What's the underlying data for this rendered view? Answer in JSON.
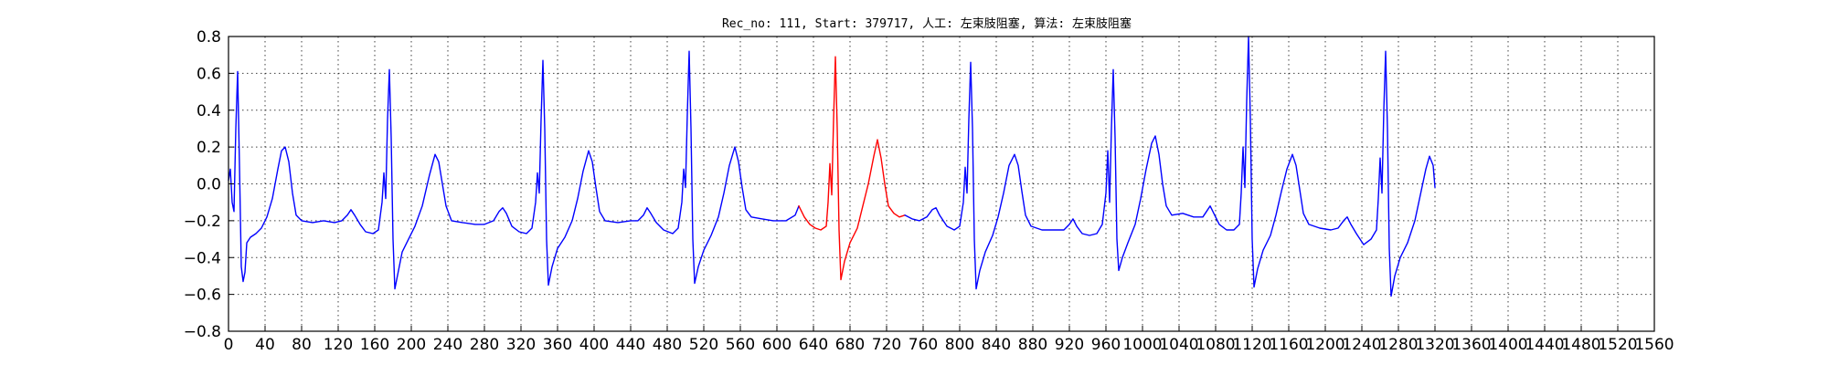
{
  "chart_data": {
    "type": "line",
    "title": "Rec_no: 111, Start: 379717, 人工: 左束肢阻塞, 算法: 左束肢阻塞",
    "xlabel": "",
    "ylabel": "",
    "xlim": [
      0,
      1560
    ],
    "ylim": [
      -0.8,
      0.8
    ],
    "grid": true,
    "x_ticks": [
      0,
      40,
      80,
      120,
      160,
      200,
      240,
      280,
      320,
      360,
      400,
      440,
      480,
      520,
      560,
      600,
      640,
      680,
      720,
      760,
      800,
      840,
      880,
      920,
      960,
      1000,
      1040,
      1080,
      1120,
      1160,
      1200,
      1240,
      1280,
      1320,
      1360,
      1400,
      1440,
      1480,
      1520,
      1560
    ],
    "x_tick_labels": [
      "0",
      "40",
      "80",
      "120",
      "160",
      "200",
      "240",
      "280",
      "320",
      "360",
      "400",
      "440",
      "480",
      "520",
      "560",
      "600",
      "640",
      "680",
      "720",
      "760",
      "800",
      "840",
      "880",
      "920",
      "960",
      "1000",
      "1040",
      "1080",
      "1120",
      "1160",
      "1200",
      "1240",
      "1280",
      "1320",
      "1360",
      "1400",
      "1440",
      "1480",
      "1520",
      "1560"
    ],
    "y_ticks": [
      -0.8,
      -0.6,
      -0.4,
      -0.2,
      0.0,
      0.2,
      0.4,
      0.6,
      0.8
    ],
    "y_tick_labels": [
      "−0.8",
      "−0.6",
      "−0.4",
      "−0.2",
      "0.0",
      "0.2",
      "0.4",
      "0.6",
      "0.8"
    ],
    "series": [
      {
        "color": "#0000ff",
        "points": [
          [
            0,
            0.02
          ],
          [
            2,
            0.08
          ],
          [
            4,
            -0.1
          ],
          [
            6,
            -0.15
          ],
          [
            8,
            0.3
          ],
          [
            10,
            0.61
          ],
          [
            12,
            0.1
          ],
          [
            14,
            -0.45
          ],
          [
            16,
            -0.53
          ],
          [
            18,
            -0.48
          ],
          [
            20,
            -0.32
          ],
          [
            24,
            -0.29
          ],
          [
            30,
            -0.27
          ],
          [
            36,
            -0.24
          ],
          [
            42,
            -0.18
          ],
          [
            48,
            -0.08
          ],
          [
            54,
            0.08
          ],
          [
            58,
            0.18
          ],
          [
            62,
            0.2
          ],
          [
            66,
            0.12
          ],
          [
            70,
            -0.05
          ],
          [
            74,
            -0.17
          ],
          [
            80,
            -0.2
          ],
          [
            92,
            -0.21
          ],
          [
            104,
            -0.2
          ],
          [
            116,
            -0.21
          ],
          [
            124,
            -0.2
          ],
          [
            130,
            -0.17
          ],
          [
            134,
            -0.14
          ],
          [
            138,
            -0.17
          ],
          [
            144,
            -0.22
          ],
          [
            150,
            -0.26
          ],
          [
            158,
            -0.27
          ],
          [
            164,
            -0.25
          ],
          [
            168,
            -0.1
          ],
          [
            170,
            0.06
          ],
          [
            172,
            -0.08
          ],
          [
            174,
            0.35
          ],
          [
            176,
            0.62
          ],
          [
            178,
            0.25
          ],
          [
            180,
            -0.3
          ],
          [
            182,
            -0.57
          ],
          [
            186,
            -0.47
          ],
          [
            190,
            -0.37
          ],
          [
            196,
            -0.31
          ],
          [
            204,
            -0.23
          ],
          [
            212,
            -0.12
          ],
          [
            220,
            0.05
          ],
          [
            226,
            0.16
          ],
          [
            230,
            0.12
          ],
          [
            234,
            0.0
          ],
          [
            238,
            -0.12
          ],
          [
            244,
            -0.2
          ],
          [
            256,
            -0.21
          ],
          [
            270,
            -0.22
          ],
          [
            280,
            -0.22
          ],
          [
            290,
            -0.2
          ],
          [
            296,
            -0.15
          ],
          [
            300,
            -0.13
          ],
          [
            304,
            -0.16
          ],
          [
            310,
            -0.23
          ],
          [
            318,
            -0.26
          ],
          [
            326,
            -0.27
          ],
          [
            332,
            -0.24
          ],
          [
            336,
            -0.1
          ],
          [
            338,
            0.06
          ],
          [
            340,
            -0.05
          ],
          [
            342,
            0.35
          ],
          [
            344,
            0.67
          ],
          [
            346,
            0.3
          ],
          [
            348,
            -0.3
          ],
          [
            350,
            -0.55
          ],
          [
            354,
            -0.45
          ],
          [
            360,
            -0.35
          ],
          [
            368,
            -0.29
          ],
          [
            376,
            -0.2
          ],
          [
            382,
            -0.08
          ],
          [
            388,
            0.07
          ],
          [
            394,
            0.18
          ],
          [
            398,
            0.12
          ],
          [
            402,
            -0.02
          ],
          [
            406,
            -0.15
          ],
          [
            412,
            -0.2
          ],
          [
            426,
            -0.21
          ],
          [
            440,
            -0.2
          ],
          [
            448,
            -0.2
          ],
          [
            454,
            -0.17
          ],
          [
            458,
            -0.13
          ],
          [
            462,
            -0.16
          ],
          [
            468,
            -0.21
          ],
          [
            476,
            -0.25
          ],
          [
            486,
            -0.27
          ],
          [
            492,
            -0.24
          ],
          [
            496,
            -0.1
          ],
          [
            498,
            0.08
          ],
          [
            500,
            -0.02
          ],
          [
            502,
            0.38
          ],
          [
            504,
            0.72
          ],
          [
            506,
            0.3
          ],
          [
            508,
            -0.3
          ],
          [
            510,
            -0.54
          ],
          [
            514,
            -0.45
          ],
          [
            520,
            -0.36
          ],
          [
            528,
            -0.28
          ],
          [
            536,
            -0.18
          ],
          [
            542,
            -0.05
          ],
          [
            548,
            0.1
          ],
          [
            554,
            0.2
          ],
          [
            558,
            0.12
          ],
          [
            562,
            -0.02
          ],
          [
            566,
            -0.14
          ],
          [
            572,
            -0.18
          ],
          [
            584,
            -0.19
          ],
          [
            596,
            -0.2
          ],
          [
            610,
            -0.2
          ],
          [
            620,
            -0.17
          ],
          [
            624,
            -0.12
          ]
        ],
        "name": ""
      },
      {
        "color": "#ff0000",
        "points": [
          [
            624,
            -0.12
          ],
          [
            630,
            -0.18
          ],
          [
            636,
            -0.22
          ],
          [
            642,
            -0.24
          ],
          [
            648,
            -0.25
          ],
          [
            654,
            -0.23
          ],
          [
            656,
            -0.1
          ],
          [
            658,
            0.11
          ],
          [
            660,
            -0.06
          ],
          [
            662,
            0.35
          ],
          [
            664,
            0.69
          ],
          [
            666,
            0.3
          ],
          [
            668,
            -0.25
          ],
          [
            670,
            -0.52
          ],
          [
            674,
            -0.42
          ],
          [
            680,
            -0.32
          ],
          [
            688,
            -0.24
          ],
          [
            694,
            -0.12
          ],
          [
            700,
            0.0
          ],
          [
            706,
            0.15
          ],
          [
            710,
            0.24
          ],
          [
            714,
            0.14
          ],
          [
            718,
            0.0
          ],
          [
            722,
            -0.12
          ],
          [
            728,
            -0.16
          ],
          [
            734,
            -0.18
          ],
          [
            740,
            -0.17
          ]
        ],
        "name": ""
      },
      {
        "color": "#0000ff",
        "points": [
          [
            740,
            -0.17
          ],
          [
            748,
            -0.19
          ],
          [
            756,
            -0.2
          ],
          [
            764,
            -0.18
          ],
          [
            770,
            -0.14
          ],
          [
            774,
            -0.13
          ],
          [
            778,
            -0.17
          ],
          [
            786,
            -0.23
          ],
          [
            794,
            -0.25
          ],
          [
            800,
            -0.23
          ],
          [
            804,
            -0.1
          ],
          [
            806,
            0.09
          ],
          [
            808,
            -0.05
          ],
          [
            810,
            0.35
          ],
          [
            812,
            0.66
          ],
          [
            814,
            0.3
          ],
          [
            816,
            -0.3
          ],
          [
            818,
            -0.57
          ],
          [
            822,
            -0.47
          ],
          [
            828,
            -0.37
          ],
          [
            836,
            -0.28
          ],
          [
            842,
            -0.18
          ],
          [
            848,
            -0.05
          ],
          [
            854,
            0.1
          ],
          [
            860,
            0.16
          ],
          [
            864,
            0.1
          ],
          [
            868,
            -0.04
          ],
          [
            872,
            -0.17
          ],
          [
            878,
            -0.23
          ],
          [
            890,
            -0.25
          ],
          [
            904,
            -0.25
          ],
          [
            914,
            -0.25
          ],
          [
            920,
            -0.22
          ],
          [
            924,
            -0.19
          ],
          [
            928,
            -0.23
          ],
          [
            934,
            -0.27
          ],
          [
            942,
            -0.28
          ],
          [
            950,
            -0.27
          ],
          [
            956,
            -0.22
          ],
          [
            960,
            -0.05
          ],
          [
            962,
            0.18
          ],
          [
            964,
            -0.1
          ],
          [
            966,
            0.3
          ],
          [
            968,
            0.62
          ],
          [
            970,
            0.25
          ],
          [
            972,
            -0.3
          ],
          [
            974,
            -0.47
          ],
          [
            978,
            -0.4
          ],
          [
            984,
            -0.32
          ],
          [
            992,
            -0.22
          ],
          [
            998,
            -0.08
          ],
          [
            1004,
            0.08
          ],
          [
            1010,
            0.22
          ],
          [
            1014,
            0.26
          ],
          [
            1018,
            0.16
          ],
          [
            1022,
            0.0
          ],
          [
            1026,
            -0.12
          ],
          [
            1032,
            -0.17
          ],
          [
            1044,
            -0.16
          ],
          [
            1056,
            -0.18
          ],
          [
            1066,
            -0.18
          ],
          [
            1070,
            -0.15
          ],
          [
            1074,
            -0.12
          ],
          [
            1078,
            -0.16
          ],
          [
            1084,
            -0.22
          ],
          [
            1092,
            -0.25
          ],
          [
            1100,
            -0.25
          ],
          [
            1106,
            -0.22
          ],
          [
            1108,
            -0.05
          ],
          [
            1110,
            0.2
          ],
          [
            1112,
            -0.02
          ],
          [
            1114,
            0.45
          ],
          [
            1116,
            0.8
          ],
          [
            1118,
            0.35
          ],
          [
            1120,
            -0.3
          ],
          [
            1122,
            -0.56
          ],
          [
            1126,
            -0.46
          ],
          [
            1132,
            -0.36
          ],
          [
            1140,
            -0.28
          ],
          [
            1146,
            -0.17
          ],
          [
            1152,
            -0.04
          ],
          [
            1158,
            0.08
          ],
          [
            1164,
            0.16
          ],
          [
            1168,
            0.1
          ],
          [
            1172,
            -0.03
          ],
          [
            1176,
            -0.16
          ],
          [
            1182,
            -0.22
          ],
          [
            1194,
            -0.24
          ],
          [
            1206,
            -0.25
          ],
          [
            1214,
            -0.24
          ],
          [
            1220,
            -0.2
          ],
          [
            1224,
            -0.18
          ],
          [
            1228,
            -0.22
          ],
          [
            1234,
            -0.27
          ],
          [
            1242,
            -0.33
          ],
          [
            1250,
            -0.3
          ],
          [
            1256,
            -0.25
          ],
          [
            1258,
            -0.08
          ],
          [
            1260,
            0.14
          ],
          [
            1262,
            -0.05
          ],
          [
            1264,
            0.4
          ],
          [
            1266,
            0.72
          ],
          [
            1268,
            0.3
          ],
          [
            1270,
            -0.35
          ],
          [
            1272,
            -0.61
          ],
          [
            1276,
            -0.5
          ],
          [
            1282,
            -0.4
          ],
          [
            1290,
            -0.32
          ],
          [
            1298,
            -0.2
          ],
          [
            1304,
            -0.06
          ],
          [
            1310,
            0.08
          ],
          [
            1314,
            0.15
          ],
          [
            1318,
            0.1
          ],
          [
            1320,
            -0.02
          ]
        ],
        "name": ""
      }
    ]
  }
}
